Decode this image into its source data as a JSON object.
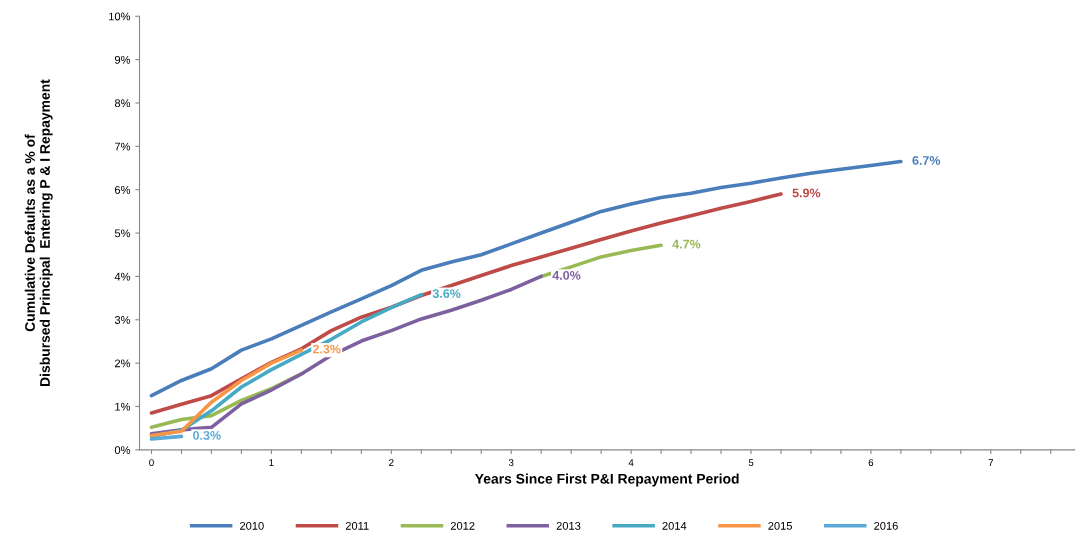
{
  "chart_data": {
    "type": "line",
    "xlabel": "Years Since First P&I Repayment Period",
    "ylabel": "Cumulative Defaults as a % of\nDisbursed Principal  Entering P & I Repayment",
    "xlim": [
      -0.1,
      7.7
    ],
    "xticks": [
      0,
      {
        "value": 0.25,
        "label": null
      },
      {
        "value": 0.5,
        "label": null
      },
      {
        "value": 0.75,
        "label": null
      },
      1,
      {
        "value": 1.25,
        "label": null
      },
      {
        "value": 1.5,
        "label": null
      },
      {
        "value": 1.75,
        "label": null
      },
      2,
      {
        "value": 2.25,
        "label": null
      },
      {
        "value": 2.5,
        "label": null
      },
      {
        "value": 2.75,
        "label": null
      },
      3,
      {
        "value": 3.25,
        "label": null
      },
      {
        "value": 3.5,
        "label": null
      },
      {
        "value": 3.75,
        "label": null
      },
      4,
      {
        "value": 4.25,
        "label": null
      },
      {
        "value": 4.5,
        "label": null
      },
      {
        "value": 4.75,
        "label": null
      },
      5,
      {
        "value": 5.25,
        "label": null
      },
      {
        "value": 5.5,
        "label": null
      },
      {
        "value": 5.75,
        "label": null
      },
      6,
      {
        "value": 6.25,
        "label": null
      },
      {
        "value": 6.5,
        "label": null
      },
      {
        "value": 6.75,
        "label": null
      },
      7,
      {
        "value": 7.25,
        "label": null
      },
      {
        "value": 7.5,
        "label": null
      }
    ],
    "ylim": [
      0,
      10
    ],
    "yticks": [
      {
        "value": 0,
        "label": "0%"
      },
      {
        "value": 1,
        "label": "1%"
      },
      {
        "value": 2,
        "label": "2%"
      },
      {
        "value": 3,
        "label": "3%"
      },
      {
        "value": 4,
        "label": "4%"
      },
      {
        "value": 5,
        "label": "5%"
      },
      {
        "value": 6,
        "label": "6%"
      },
      {
        "value": 7,
        "label": "7%"
      },
      {
        "value": 8,
        "label": "8%"
      },
      {
        "value": 9,
        "label": "9%"
      },
      {
        "value": 10,
        "label": "10%"
      }
    ],
    "grid": false,
    "legend": "bottom",
    "marker": "none",
    "line_style": "solid",
    "series": [
      {
        "name": "2010",
        "color": "#4a7ebb",
        "x": [
          0,
          0.25,
          0.5,
          0.75,
          1,
          1.25,
          1.5,
          1.75,
          2,
          2.25,
          2.5,
          2.75,
          3,
          3.25,
          3.5,
          3.75,
          4,
          4.25,
          4.5,
          4.75,
          5,
          5.25,
          5.5,
          5.75,
          6,
          6.25
        ],
        "values": [
          1.25,
          1.6,
          1.87,
          2.3,
          2.56,
          2.87,
          3.18,
          3.48,
          3.79,
          4.14,
          4.33,
          4.5,
          4.75,
          5.0,
          5.25,
          5.5,
          5.67,
          5.82,
          5.92,
          6.05,
          6.15,
          6.27,
          6.38,
          6.47,
          6.56,
          6.65
        ],
        "value_labels": [
          null,
          null,
          null,
          null,
          null,
          null,
          null,
          null,
          null,
          null,
          null,
          null,
          null,
          null,
          null,
          null,
          null,
          null,
          null,
          null,
          null,
          null,
          null,
          null,
          null,
          "6.7%"
        ]
      },
      {
        "name": "2011",
        "color": "#be4b48",
        "x": [
          0,
          0.25,
          0.5,
          0.75,
          1,
          1.25,
          1.5,
          1.75,
          2,
          2.25,
          2.5,
          2.75,
          3,
          3.25,
          3.5,
          3.75,
          4,
          4.25,
          4.5,
          4.75,
          5,
          5.25
        ],
        "values": [
          0.85,
          1.05,
          1.25,
          1.64,
          2.02,
          2.33,
          2.75,
          3.06,
          3.29,
          3.56,
          3.79,
          4.02,
          4.25,
          4.45,
          4.65,
          4.85,
          5.05,
          5.23,
          5.4,
          5.57,
          5.73,
          5.9
        ],
        "value_labels": [
          null,
          null,
          null,
          null,
          null,
          null,
          null,
          null,
          null,
          null,
          null,
          null,
          null,
          null,
          null,
          null,
          null,
          null,
          null,
          null,
          null,
          "5.9%"
        ]
      },
      {
        "name": "2012",
        "color": "#98b954",
        "x": [
          0,
          0.25,
          0.5,
          0.75,
          1,
          1.25,
          1.5,
          1.75,
          2,
          2.25,
          2.5,
          2.75,
          3,
          3.25,
          3.5,
          3.75,
          4,
          4.25
        ],
        "values": [
          0.52,
          0.7,
          0.79,
          1.14,
          1.41,
          1.75,
          null,
          null,
          null,
          null,
          null,
          null,
          null,
          4.0,
          4.22,
          4.45,
          4.6,
          4.72
        ],
        "value_labels": [
          null,
          null,
          null,
          null,
          null,
          null,
          null,
          null,
          null,
          null,
          null,
          null,
          null,
          null,
          null,
          null,
          null,
          "4.7%"
        ]
      },
      {
        "name": "2013",
        "color": "#7d60a0",
        "x": [
          0,
          0.25,
          0.5,
          0.75,
          1,
          1.25,
          1.5,
          1.75,
          2,
          2.25,
          2.5,
          2.75,
          3,
          3.25
        ],
        "values": [
          0.37,
          0.46,
          0.52,
          1.06,
          1.38,
          1.75,
          2.18,
          2.51,
          2.75,
          3.02,
          3.22,
          3.45,
          3.7,
          4.0
        ],
        "value_labels": [
          null,
          null,
          null,
          null,
          null,
          null,
          null,
          null,
          null,
          null,
          null,
          null,
          null,
          "4.0%"
        ]
      },
      {
        "name": "2014",
        "color": "#46aac5",
        "x": [
          0,
          0.25,
          0.5,
          0.75,
          1,
          1.25,
          1.5,
          1.75,
          2,
          2.25
        ],
        "values": [
          0.31,
          0.45,
          0.9,
          1.45,
          1.85,
          2.2,
          2.55,
          2.95,
          3.28,
          3.58
        ],
        "value_labels": [
          null,
          null,
          null,
          null,
          null,
          null,
          null,
          null,
          null,
          "3.6%"
        ]
      },
      {
        "name": "2015",
        "color": "#f79646",
        "x": [
          0,
          0.25,
          0.5,
          0.75,
          1,
          1.25
        ],
        "values": [
          0.33,
          0.43,
          1.1,
          1.6,
          2.0,
          2.3
        ],
        "value_labels": [
          null,
          null,
          null,
          null,
          null,
          "2.3%"
        ]
      },
      {
        "name": "2016",
        "color": "#5aa9d6",
        "x": [
          0,
          0.25
        ],
        "values": [
          0.25,
          0.31
        ],
        "value_labels": [
          null,
          "0.3%"
        ]
      }
    ]
  }
}
